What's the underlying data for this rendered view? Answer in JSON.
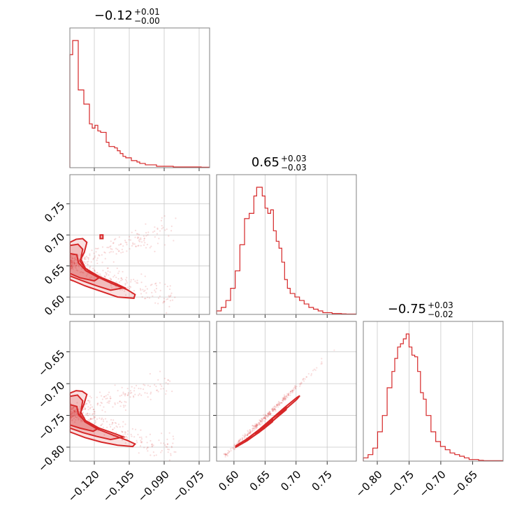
{
  "figure": {
    "titles": [
      {
        "main": "−0.12",
        "sup": "+0.01",
        "sub": "−0.00"
      },
      {
        "main": "0.65",
        "sup": "+0.03",
        "sub": "−0.03"
      },
      {
        "main": "−0.75",
        "sup": "+0.03",
        "sub": "−0.02"
      }
    ],
    "accent_color": "#d62728"
  },
  "chart_data": {
    "type": "corner",
    "parameters": [
      "p0",
      "p1",
      "p2"
    ],
    "ranges": [
      [
        -0.1305,
        -0.0705
      ],
      [
        0.572,
        0.797
      ],
      [
        -0.822,
        -0.602
      ]
    ],
    "ticks": [
      {
        "values": [
          -0.12,
          -0.105,
          -0.09,
          -0.075
        ],
        "labels": [
          "−0.120",
          "−0.105",
          "−0.090",
          "−0.075"
        ]
      },
      {
        "values": [
          0.6,
          0.65,
          0.7,
          0.75
        ],
        "labels": [
          "0.60",
          "0.65",
          "0.70",
          "0.75"
        ]
      },
      {
        "values": [
          -0.8,
          -0.75,
          -0.7,
          -0.65
        ],
        "labels": [
          "−0.80",
          "−0.75",
          "−0.70",
          "−0.65"
        ]
      }
    ],
    "grid": true,
    "histograms": [
      {
        "param": 0,
        "edges": [
          -0.1305,
          -0.1293,
          -0.1281,
          -0.1269,
          -0.1257,
          -0.1245,
          -0.1233,
          -0.1221,
          -0.1209,
          -0.1197,
          -0.1185,
          -0.1173,
          -0.1161,
          -0.1149,
          -0.1137,
          -0.1125,
          -0.1113,
          -0.1101,
          -0.1089,
          -0.1077,
          -0.1065,
          -0.1053,
          -0.1041,
          -0.1029,
          -0.1017,
          -0.1005,
          -0.0981,
          -0.0957,
          -0.0933,
          -0.0909,
          -0.0885,
          -0.0861,
          -0.0837,
          -0.0813,
          -0.0789,
          -0.0765,
          -0.0741,
          -0.0705
        ],
        "counts": [
          80,
          90,
          90,
          55,
          55,
          45,
          45,
          31,
          28,
          30,
          26,
          25,
          25,
          18,
          15,
          15,
          14,
          12,
          10,
          8,
          7,
          7,
          5,
          5,
          4,
          3,
          2,
          2,
          1,
          1,
          1,
          0.5,
          0.5,
          0.5,
          0.5,
          0.5,
          0.3
        ]
      },
      {
        "param": 1,
        "edges": [
          0.572,
          0.5795,
          0.587,
          0.5945,
          0.602,
          0.6095,
          0.617,
          0.6245,
          0.632,
          0.6365,
          0.641,
          0.6455,
          0.65,
          0.6545,
          0.659,
          0.6635,
          0.668,
          0.6725,
          0.677,
          0.6815,
          0.686,
          0.6905,
          0.698,
          0.7055,
          0.713,
          0.7205,
          0.728,
          0.7355,
          0.743,
          0.7505,
          0.758,
          0.7655,
          0.773,
          0.7805,
          0.797
        ],
        "counts": [
          2,
          4,
          8,
          15,
          25,
          40,
          55,
          58,
          68,
          73,
          73,
          68,
          61,
          58,
          60,
          48,
          42,
          38,
          30,
          20,
          15,
          12,
          10,
          8,
          6,
          4,
          3,
          2,
          1,
          1,
          0.5,
          0.5,
          0.3,
          0.2
        ]
      },
      {
        "param": 2,
        "edges": [
          -0.822,
          -0.8145,
          -0.807,
          -0.7995,
          -0.792,
          -0.7845,
          -0.777,
          -0.7725,
          -0.768,
          -0.7635,
          -0.759,
          -0.7545,
          -0.75,
          -0.7455,
          -0.741,
          -0.7365,
          -0.732,
          -0.7275,
          -0.723,
          -0.7155,
          -0.708,
          -0.7005,
          -0.693,
          -0.6855,
          -0.678,
          -0.6705,
          -0.663,
          -0.6555,
          -0.648,
          -0.6405,
          -0.633,
          -0.602
        ],
        "counts": [
          2,
          4,
          8,
          18,
          28,
          45,
          55,
          63,
          70,
          72,
          75,
          78,
          70,
          65,
          64,
          55,
          42,
          38,
          28,
          18,
          12,
          9,
          7,
          5,
          4,
          3,
          2,
          1,
          1,
          0.5,
          0.3
        ]
      }
    ],
    "scatter_2d": [
      {
        "x_param": 0,
        "y_param": 1,
        "contours": [
          [
            [
              -0.1305,
              0.688
            ],
            [
              -0.1278,
              0.693
            ],
            [
              -0.125,
              0.694
            ],
            [
              -0.1232,
              0.688
            ],
            [
              -0.1243,
              0.672
            ],
            [
              -0.1262,
              0.658
            ],
            [
              -0.1241,
              0.647
            ],
            [
              -0.119,
              0.633
            ],
            [
              -0.112,
              0.621
            ],
            [
              -0.106,
              0.612
            ],
            [
              -0.1025,
              0.604
            ],
            [
              -0.103,
              0.598
            ],
            [
              -0.11,
              0.6
            ],
            [
              -0.117,
              0.609
            ],
            [
              -0.124,
              0.618
            ],
            [
              -0.129,
              0.626
            ],
            [
              -0.1305,
              0.628
            ]
          ],
          [
            [
              -0.1305,
              0.683
            ],
            [
              -0.127,
              0.685
            ],
            [
              -0.125,
              0.677
            ],
            [
              -0.1258,
              0.661
            ],
            [
              -0.1238,
              0.646
            ],
            [
              -0.118,
              0.633
            ],
            [
              -0.111,
              0.622
            ],
            [
              -0.107,
              0.615
            ],
            [
              -0.113,
              0.611
            ],
            [
              -0.119,
              0.618
            ],
            [
              -0.125,
              0.626
            ],
            [
              -0.1305,
              0.634
            ]
          ],
          [
            [
              -0.1305,
              0.67
            ],
            [
              -0.1275,
              0.668
            ],
            [
              -0.1268,
              0.655
            ],
            [
              -0.1235,
              0.642
            ],
            [
              -0.118,
              0.631
            ],
            [
              -0.12,
              0.626
            ],
            [
              -0.1262,
              0.631
            ],
            [
              -0.1305,
              0.638
            ]
          ],
          [
            [
              -0.1175,
              0.694
            ],
            [
              -0.1163,
              0.694
            ],
            [
              -0.1163,
              0.7
            ],
            [
              -0.1175,
              0.7
            ]
          ]
        ],
        "cloud": {
          "x_start": -0.1305,
          "x_end": -0.085,
          "band_center": [
            0.655,
            0.712
          ],
          "band_lower": [
            0.655,
            0.594
          ]
        }
      },
      {
        "x_param": 0,
        "y_param": 2,
        "contours": [
          [
            [
              -0.1305,
              -0.715
            ],
            [
              -0.1278,
              -0.711
            ],
            [
              -0.1252,
              -0.712
            ],
            [
              -0.1232,
              -0.717
            ],
            [
              -0.1245,
              -0.733
            ],
            [
              -0.1262,
              -0.748
            ],
            [
              -0.1241,
              -0.76
            ],
            [
              -0.119,
              -0.771
            ],
            [
              -0.112,
              -0.781
            ],
            [
              -0.106,
              -0.789
            ],
            [
              -0.1025,
              -0.795
            ],
            [
              -0.1035,
              -0.799
            ],
            [
              -0.11,
              -0.797
            ],
            [
              -0.117,
              -0.792
            ],
            [
              -0.124,
              -0.785
            ],
            [
              -0.129,
              -0.778
            ],
            [
              -0.1305,
              -0.776
            ]
          ],
          [
            [
              -0.1305,
              -0.72
            ],
            [
              -0.1272,
              -0.718
            ],
            [
              -0.125,
              -0.727
            ],
            [
              -0.1258,
              -0.745
            ],
            [
              -0.1238,
              -0.758
            ],
            [
              -0.118,
              -0.77
            ],
            [
              -0.111,
              -0.779
            ],
            [
              -0.1075,
              -0.784
            ],
            [
              -0.113,
              -0.788
            ],
            [
              -0.119,
              -0.783
            ],
            [
              -0.125,
              -0.777
            ],
            [
              -0.1305,
              -0.77
            ]
          ],
          [
            [
              -0.1305,
              -0.733
            ],
            [
              -0.1275,
              -0.736
            ],
            [
              -0.1268,
              -0.749
            ],
            [
              -0.1235,
              -0.761
            ],
            [
              -0.1185,
              -0.771
            ],
            [
              -0.1205,
              -0.775
            ],
            [
              -0.1262,
              -0.77
            ],
            [
              -0.1305,
              -0.765
            ]
          ]
        ],
        "cloud": {
          "x_start": -0.1305,
          "x_end": -0.085,
          "band_center": [
            -0.745,
            -0.695
          ],
          "band_lower": [
            -0.745,
            -0.808
          ]
        }
      },
      {
        "x_param": 1,
        "y_param": 2,
        "contours": [
          [
            [
              0.603,
              -0.798
            ],
            [
              0.621,
              -0.787
            ],
            [
              0.641,
              -0.772
            ],
            [
              0.661,
              -0.755
            ],
            [
              0.681,
              -0.738
            ],
            [
              0.701,
              -0.722
            ],
            [
              0.706,
              -0.719
            ],
            [
              0.701,
              -0.725
            ],
            [
              0.681,
              -0.742
            ],
            [
              0.661,
              -0.76
            ],
            [
              0.641,
              -0.776
            ],
            [
              0.621,
              -0.79
            ],
            [
              0.603,
              -0.8
            ]
          ],
          [
            [
              0.618,
              -0.789
            ],
            [
              0.64,
              -0.773
            ],
            [
              0.662,
              -0.755
            ],
            [
              0.684,
              -0.738
            ],
            [
              0.684,
              -0.741
            ],
            [
              0.662,
              -0.759
            ],
            [
              0.64,
              -0.777
            ],
            [
              0.618,
              -0.791
            ]
          ],
          [
            [
              0.635,
              -0.778
            ],
            [
              0.648,
              -0.768
            ],
            [
              0.662,
              -0.757
            ],
            [
              0.662,
              -0.76
            ],
            [
              0.648,
              -0.771
            ],
            [
              0.635,
              -0.78
            ]
          ]
        ],
        "cloud": {
          "line_from": [
            0.587,
            -0.812
          ],
          "line_to": [
            0.762,
            -0.648
          ]
        }
      }
    ]
  }
}
